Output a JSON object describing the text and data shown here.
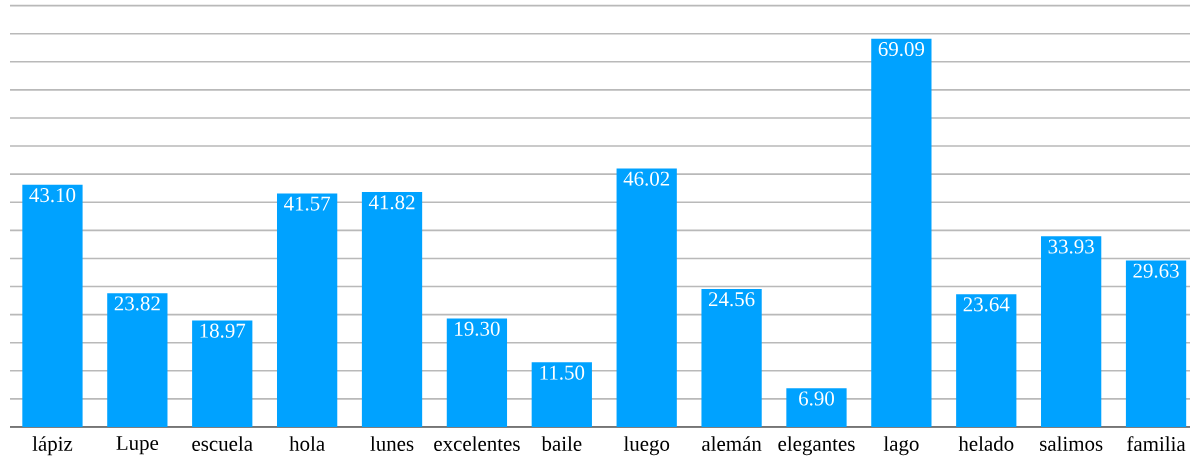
{
  "chart_data": {
    "type": "bar",
    "categories": [
      "lápiz",
      "Lupe",
      "escuela",
      "hola",
      "lunes",
      "excelentes",
      "baile",
      "luego",
      "alemán",
      "elegantes",
      "lago",
      "helado",
      "salimos",
      "familia"
    ],
    "values": [
      43.1,
      23.82,
      18.97,
      41.57,
      41.82,
      19.3,
      11.5,
      46.02,
      24.56,
      6.9,
      69.09,
      23.64,
      33.93,
      29.63
    ],
    "value_labels": [
      "43.10",
      "23.82",
      "18.97",
      "41.57",
      "41.82",
      "19.30",
      "11.50",
      "46.02",
      "24.56",
      "6.90",
      "69.09",
      "23.64",
      "33.93",
      "29.63"
    ],
    "color": "#00a2ff",
    "tick_labels": "x",
    "grid": "y"
  }
}
